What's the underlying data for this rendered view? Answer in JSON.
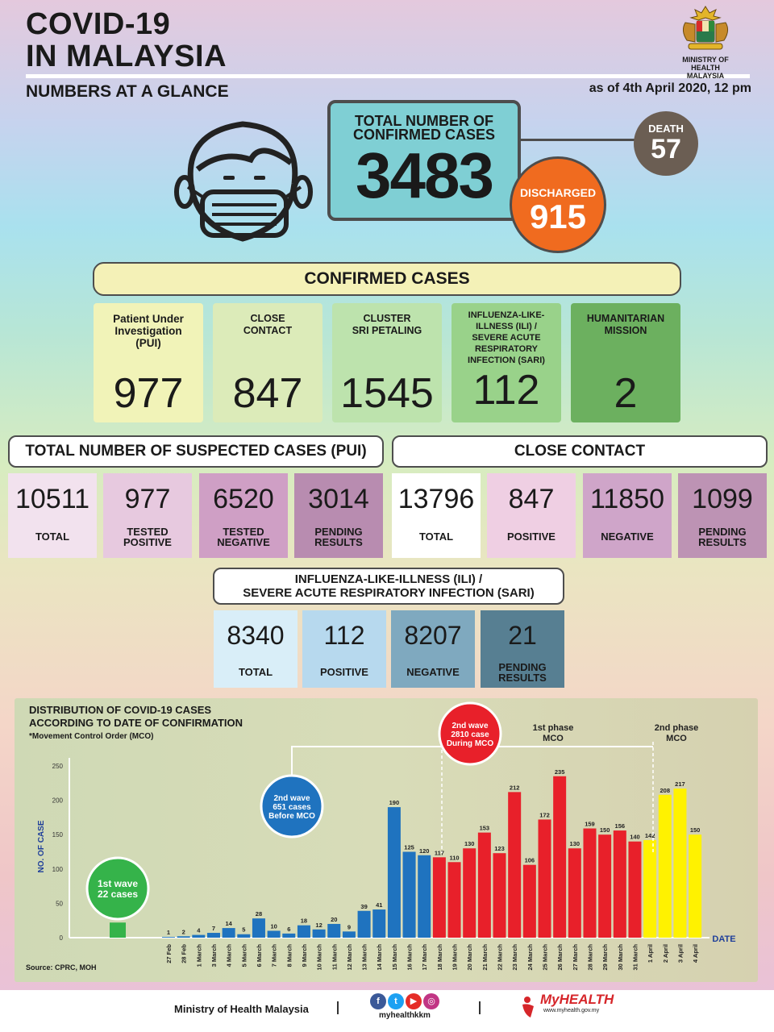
{
  "header": {
    "title_line1": "COVID-19",
    "title_line2": "IN MALAYSIA",
    "subtitle": "NUMBERS AT A GLANCE",
    "as_of": "as of 4th April 2020, 12 pm",
    "ministry_line1": "MINISTRY OF HEALTH",
    "ministry_line2": "MALAYSIA"
  },
  "totals": {
    "label_line1": "TOTAL NUMBER OF",
    "label_line2": "CONFIRMED CASES",
    "value": "3483",
    "death_label": "DEATH",
    "death_value": "57",
    "discharged_label": "DISCHARGED",
    "discharged_value": "915"
  },
  "confirmed": {
    "banner": "CONFIRMED CASES",
    "items": [
      {
        "label": "Patient Under\nInvestigation\n(PUI)",
        "value": "977",
        "color": "#f1f3b8"
      },
      {
        "label": "CLOSE\nCONTACT",
        "value": "847",
        "color": "#dcebb9"
      },
      {
        "label": "CLUSTER\nSRI PETALING",
        "value": "1545",
        "color": "#bde3ad"
      },
      {
        "label": "INFLUENZA-LIKE-\nILLNESS (ILI) /\nSEVERE ACUTE\nRESPIRATORY\nINFECTION (SARI)",
        "value": "112",
        "color": "#99d28a"
      },
      {
        "label": "HUMANITARIAN\nMISSION",
        "value": "2",
        "color": "#6cb05f"
      }
    ]
  },
  "pui": {
    "heading": "TOTAL NUMBER OF SUSPECTED CASES (PUI)",
    "items": [
      {
        "value": "10511",
        "label": "TOTAL",
        "color": "#f2e2ee"
      },
      {
        "value": "977",
        "label": "TESTED\nPOSITIVE",
        "color": "#e7c9df"
      },
      {
        "value": "6520",
        "label": "TESTED\nNEGATIVE",
        "color": "#cf9fc5"
      },
      {
        "value": "3014",
        "label": "PENDING\nRESULTS",
        "color": "#b88cb0"
      }
    ]
  },
  "close_contact": {
    "heading": "CLOSE CONTACT",
    "items": [
      {
        "value": "13796",
        "label": "TOTAL",
        "color": "#ffffff"
      },
      {
        "value": "847",
        "label": "POSITIVE",
        "color": "#efcfe3"
      },
      {
        "value": "11850",
        "label": "NEGATIVE",
        "color": "#cfa5c9"
      },
      {
        "value": "1099",
        "label": "PENDING\nRESULTS",
        "color": "#bd93b4"
      }
    ]
  },
  "ili": {
    "heading_line1": "INFLUENZA-LIKE-ILLNESS (ILI) /",
    "heading_line2": "SEVERE ACUTE RESPIRATORY INFECTION (SARI)",
    "items": [
      {
        "value": "8340",
        "label": "TOTAL",
        "color": "#d9eef8"
      },
      {
        "value": "112",
        "label": "POSITIVE",
        "color": "#b7d9ee"
      },
      {
        "value": "8207",
        "label": "NEGATIVE",
        "color": "#7fa9bf"
      },
      {
        "value": "21",
        "label": "PENDING\nRESULTS",
        "color": "#577f92"
      }
    ]
  },
  "chart_text": {
    "title_line1": "DISTRIBUTION OF COVID-19 CASES",
    "title_line2": "ACCORDING TO DATE OF CONFIRMATION",
    "note": "*Movement Control Order (MCO)",
    "source": "Source: CPRC, MOH"
  },
  "chart_data": {
    "type": "bar",
    "ylabel": "NO. OF CASE",
    "xlabel": "DATE",
    "ylim": [
      0,
      250
    ],
    "yticks": [
      0,
      50,
      100,
      150,
      200,
      250
    ],
    "first_wave": {
      "value": 22,
      "label_line1": "1st wave",
      "label_line2": "22 cases"
    },
    "categories": [
      "27 Feb",
      "28 Feb",
      "1 March",
      "3 March",
      "4 March",
      "5 March",
      "6 March",
      "7 March",
      "8 March",
      "9 March",
      "10 March",
      "11 March",
      "12 March",
      "13 March",
      "14 March",
      "15 March",
      "16 March",
      "17 March",
      "18 March",
      "19 March",
      "20 March",
      "21 March",
      "22 March",
      "23 March",
      "24 March",
      "25 March",
      "26 March",
      "27 March",
      "28 March",
      "29 March",
      "30 March",
      "31 March",
      "1 April",
      "2 April",
      "3 April",
      "4 April"
    ],
    "values": [
      1,
      2,
      4,
      7,
      14,
      5,
      28,
      10,
      6,
      18,
      12,
      20,
      9,
      39,
      41,
      190,
      125,
      120,
      117,
      110,
      130,
      153,
      123,
      212,
      106,
      172,
      235,
      130,
      159,
      150,
      156,
      140,
      142,
      208,
      217,
      150
    ],
    "phase": [
      "before",
      "before",
      "before",
      "before",
      "before",
      "before",
      "before",
      "before",
      "before",
      "before",
      "before",
      "before",
      "before",
      "before",
      "before",
      "before",
      "before",
      "before",
      "mco1",
      "mco1",
      "mco1",
      "mco1",
      "mco1",
      "mco1",
      "mco1",
      "mco1",
      "mco1",
      "mco1",
      "mco1",
      "mco1",
      "mco1",
      "mco1",
      "mco2",
      "mco2",
      "mco2",
      "mco2"
    ],
    "colors": {
      "first_wave": "#35b34a",
      "before": "#1f73bf",
      "mco1": "#e8202a",
      "mco2": "#fff200"
    },
    "annotations": {
      "second_wave_before": {
        "line1": "2nd wave",
        "line2": "651 cases",
        "line3": "Before MCO"
      },
      "second_wave_during": {
        "line1": "2nd wave",
        "line2": "2810 case",
        "line3": "During MCO"
      },
      "phase1": {
        "line1": "1st phase",
        "line2": "MCO"
      },
      "phase2": {
        "line1": "2nd phase",
        "line2": "MCO"
      }
    }
  },
  "footer": {
    "ministry": "Ministry of Health Malaysia",
    "handle": "myhealthkkm",
    "brand": "MyHEALTH",
    "url": "www.myhealth.gov.my",
    "social_icons": [
      "facebook-icon",
      "twitter-icon",
      "youtube-icon",
      "instagram-icon"
    ]
  },
  "icons": [
    "face-mask-icon",
    "malaysia-crest-icon"
  ]
}
